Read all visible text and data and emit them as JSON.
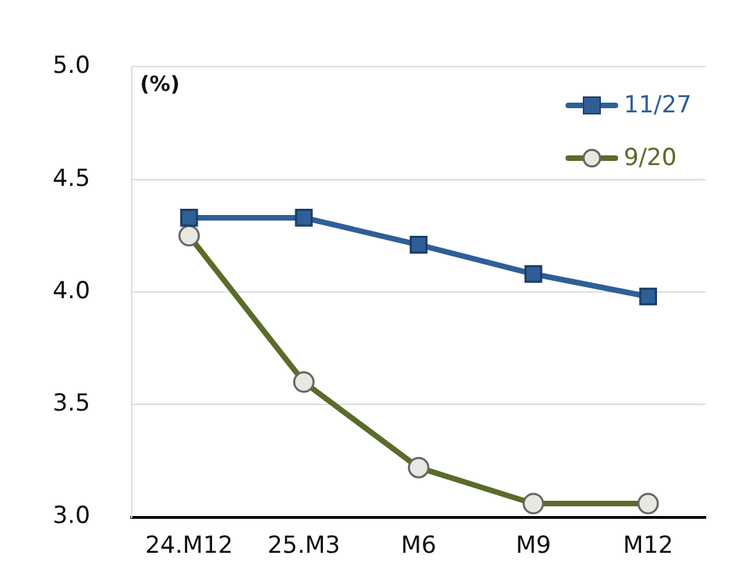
{
  "chart_data": {
    "type": "line",
    "ylabel": "(%)",
    "categories": [
      "24.M12",
      "25.M3",
      "M6",
      "M9",
      "M12"
    ],
    "series": [
      {
        "name": "11/27",
        "color": "#2f5f97",
        "marker": "square",
        "values": [
          4.33,
          4.33,
          4.21,
          4.08,
          3.98
        ]
      },
      {
        "name": "9/20",
        "color": "#5a6b2a",
        "marker": "circle",
        "values": [
          4.25,
          3.6,
          3.22,
          3.06,
          3.06
        ]
      }
    ],
    "ylim": [
      3.0,
      5.0
    ],
    "yticks": [
      {
        "value": 3,
        "label": "3.0"
      },
      {
        "value": 3.5,
        "label": "3.5"
      },
      {
        "value": 4,
        "label": "4.0"
      },
      {
        "value": 4.5,
        "label": "4.5"
      },
      {
        "value": 5,
        "label": "5.0"
      }
    ],
    "grid": "y",
    "legend": "top right"
  }
}
